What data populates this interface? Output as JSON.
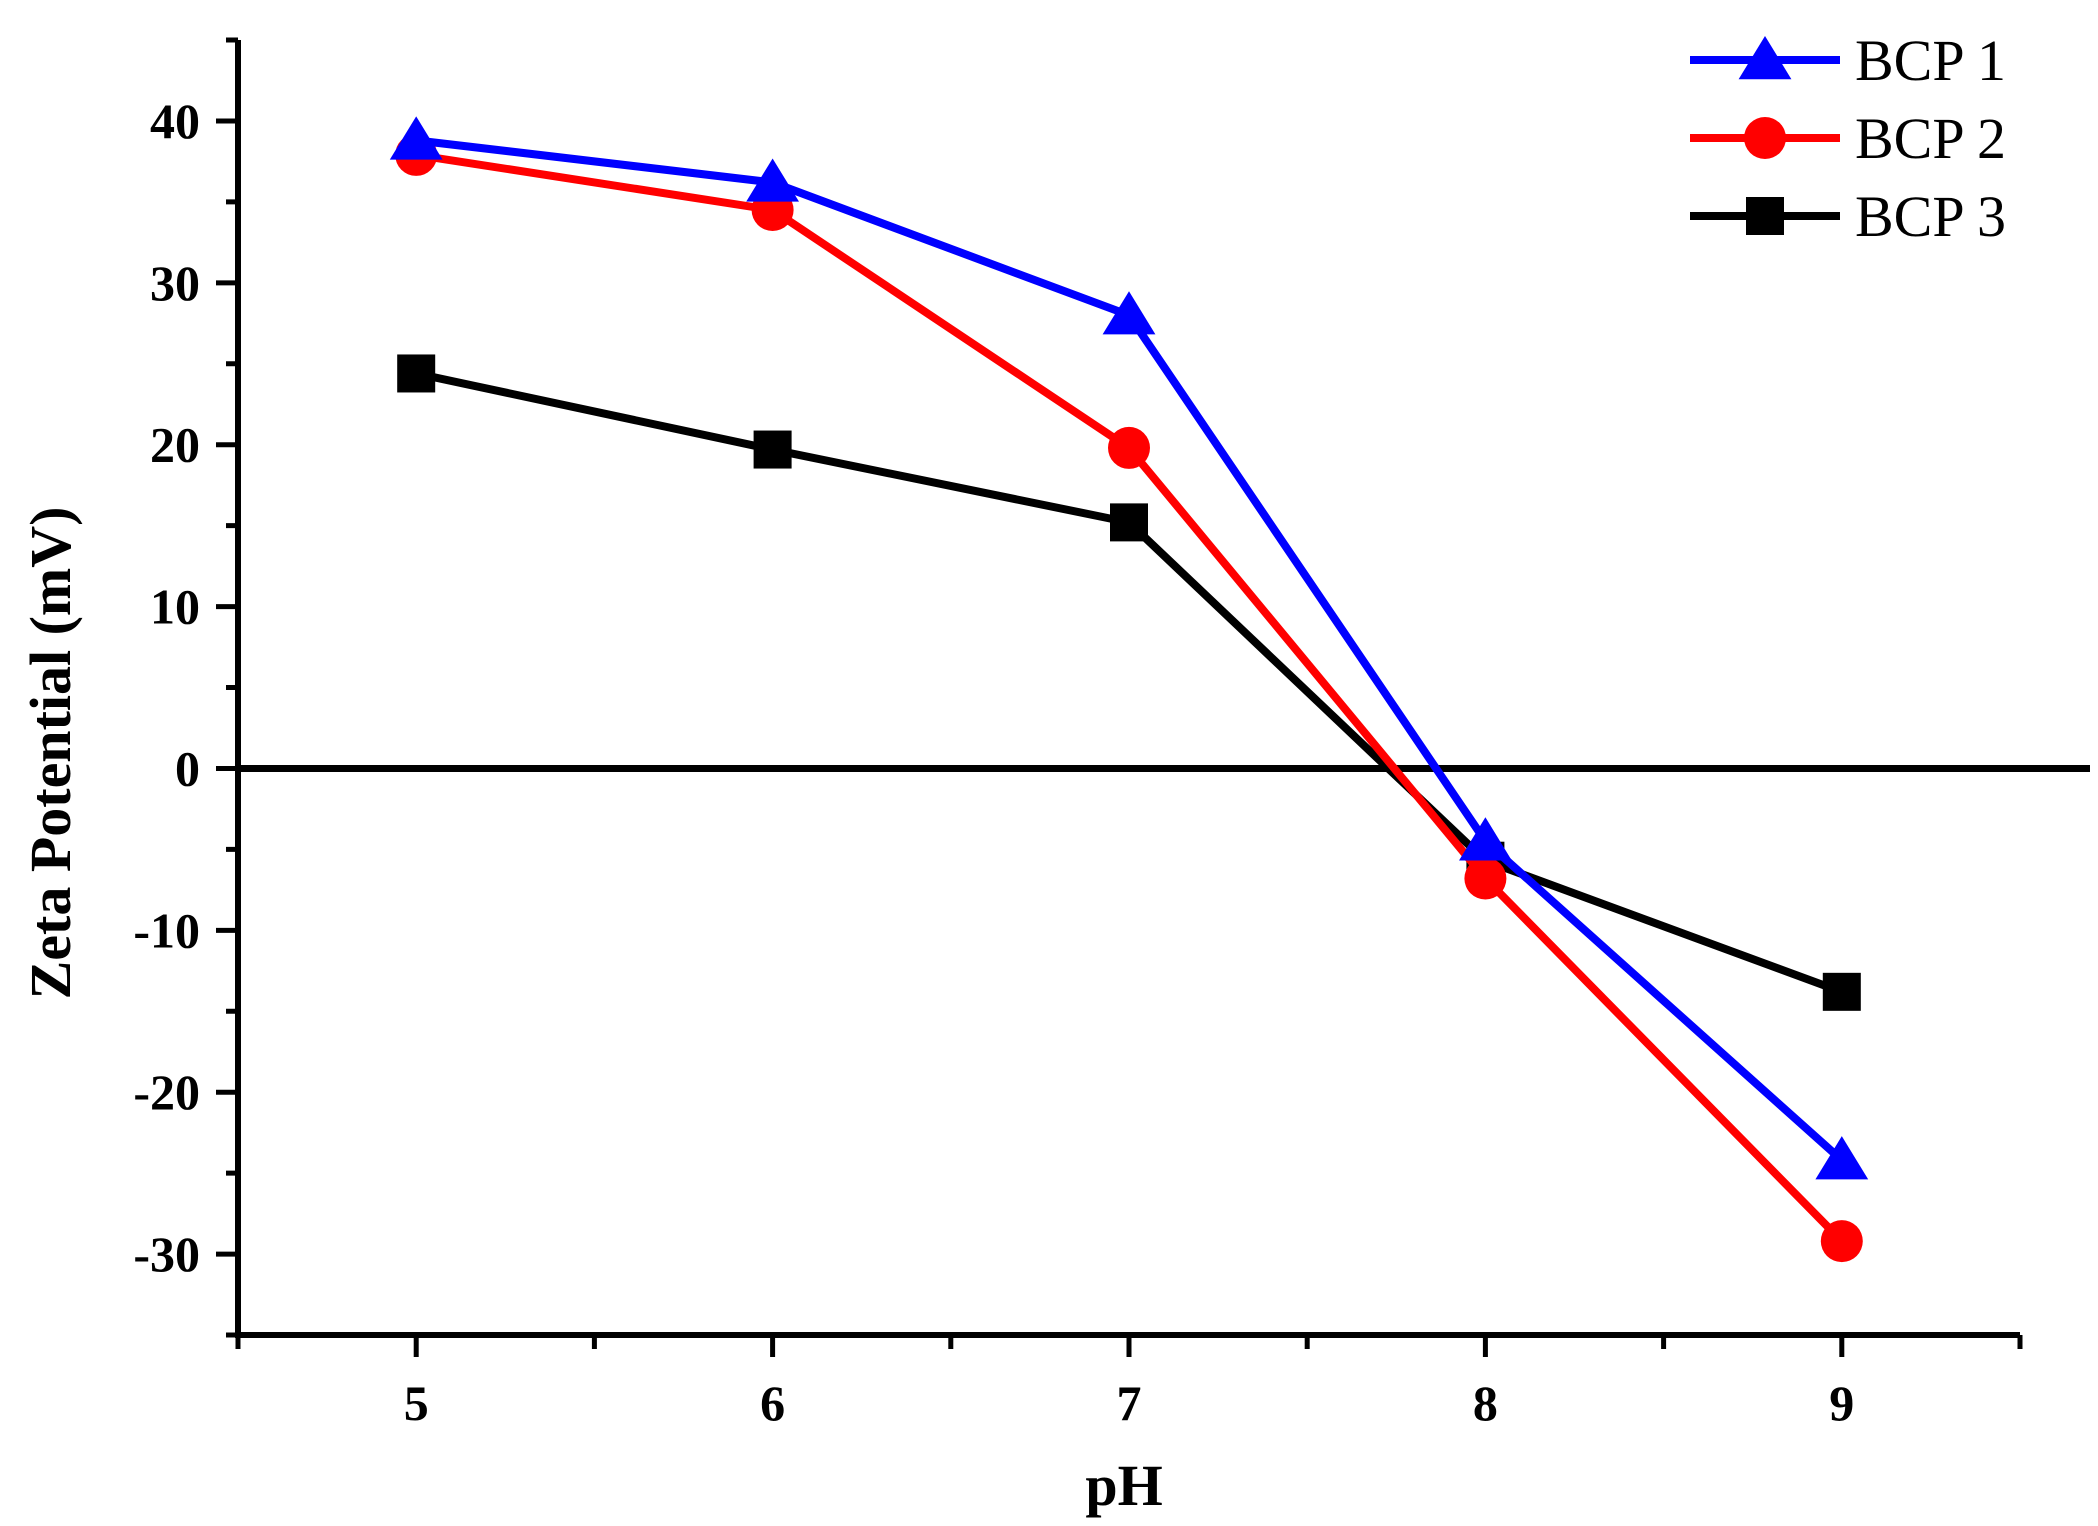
{
  "chart_data": {
    "type": "line",
    "title": "",
    "xlabel": "pH",
    "ylabel": "Zeta Potential (mV)",
    "x": [
      5,
      6,
      7,
      8,
      9
    ],
    "xlim": [
      4.5,
      9.5
    ],
    "ylim": [
      -35,
      45
    ],
    "xticks": [
      "5",
      "6",
      "7",
      "8",
      "9"
    ],
    "yticks": [
      "40",
      "30",
      "20",
      "10",
      "0",
      "-10",
      "-20",
      "-30"
    ],
    "reference_line_y": 0,
    "legend_position": "top-right",
    "grid": false,
    "series": [
      {
        "name": "BCP 1",
        "marker": "triangle",
        "color": "#0000ff",
        "values": [
          38.8,
          36.2,
          28.0,
          -4.5,
          -24.2
        ]
      },
      {
        "name": "BCP 2",
        "marker": "circle",
        "color": "#ff0000",
        "values": [
          37.9,
          34.5,
          19.8,
          -6.8,
          -29.2
        ]
      },
      {
        "name": "BCP 3",
        "marker": "square",
        "color": "#000000",
        "values": [
          24.4,
          19.7,
          15.2,
          -5.7,
          -13.8
        ]
      }
    ]
  }
}
